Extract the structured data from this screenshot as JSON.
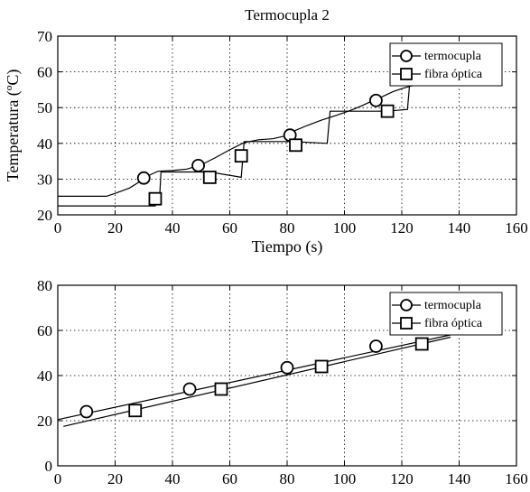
{
  "chart_data": [
    {
      "type": "line",
      "title": "Termocupla 2",
      "xlabel": "Tiempo (s)",
      "ylabel": "Temperatura (ºC)",
      "xlim": [
        0,
        160
      ],
      "ylim": [
        20,
        70
      ],
      "xticks": [
        0,
        20,
        40,
        60,
        80,
        100,
        120,
        140,
        160
      ],
      "yticks": [
        20,
        30,
        40,
        50,
        60,
        70
      ],
      "grid": true,
      "legend_position": "top-right",
      "series": [
        {
          "name": "termocupla",
          "marker": "circle",
          "x": [
            0,
            17,
            20,
            25,
            28,
            30,
            33,
            35,
            37,
            40,
            45,
            50,
            55,
            60,
            65,
            70,
            75,
            80,
            82,
            87,
            92,
            97,
            100,
            103,
            106,
            110,
            113,
            117,
            120,
            123,
            125
          ],
          "y": [
            25.2,
            25.2,
            26,
            27.5,
            29,
            30.3,
            31.5,
            32.2,
            32.3,
            32.4,
            32.8,
            34,
            36,
            38.2,
            40.2,
            41,
            41.3,
            42.2,
            43.3,
            45,
            46.5,
            47.8,
            48.6,
            49.5,
            50.5,
            52,
            53,
            54.5,
            55.3,
            56,
            56.3
          ],
          "marker_x": [
            30,
            49,
            81,
            111
          ],
          "marker_y": [
            30.3,
            33.8,
            42.3,
            52
          ]
        },
        {
          "name": "fibra óptica",
          "marker": "square",
          "x": [
            0,
            34,
            35.5,
            36,
            53,
            64,
            65,
            82,
            94,
            95,
            115,
            122,
            123
          ],
          "y": [
            22.5,
            22.5,
            24.5,
            32,
            32,
            30.5,
            40.5,
            40.5,
            40,
            49,
            49,
            49.5,
            59
          ],
          "marker_x": [
            34,
            53,
            64,
            83,
            115,
            123
          ],
          "marker_y": [
            24.5,
            30.5,
            36.5,
            39.5,
            49,
            58
          ]
        }
      ]
    },
    {
      "type": "line",
      "title": "",
      "xlabel": "",
      "ylabel": "",
      "xlim": [
        0,
        160
      ],
      "ylim": [
        0,
        80
      ],
      "xticks": [
        0,
        20,
        40,
        60,
        80,
        100,
        120,
        140,
        160
      ],
      "yticks": [
        0,
        20,
        40,
        60,
        80
      ],
      "grid": true,
      "legend_position": "top-right",
      "series": [
        {
          "name": "termocupla",
          "marker": "circle",
          "x": [
            0,
            137
          ],
          "y": [
            20.5,
            58
          ],
          "marker_x": [
            10,
            46,
            80,
            111
          ],
          "marker_y": [
            24,
            34,
            43.5,
            53
          ]
        },
        {
          "name": "fibra óptica",
          "marker": "square",
          "x": [
            2,
            137
          ],
          "y": [
            17.5,
            57
          ],
          "marker_x": [
            27,
            57,
            92,
            127
          ],
          "marker_y": [
            24.5,
            34,
            44,
            54
          ]
        }
      ]
    }
  ]
}
